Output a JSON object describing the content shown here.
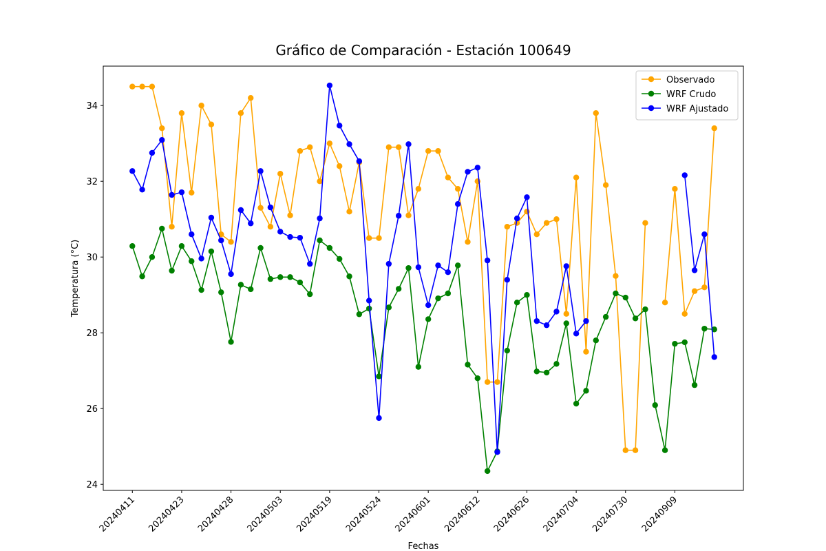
{
  "chart_data": {
    "type": "line",
    "title": "Gráfico de Comparación - Estación 100649",
    "x_label": "Fechas",
    "y_label": "Temperatura (°C)",
    "categories": [
      "20240411",
      null,
      null,
      null,
      null,
      "20240423",
      null,
      null,
      null,
      null,
      "20240428",
      null,
      null,
      null,
      null,
      "20240503",
      null,
      null,
      null,
      null,
      "20240519",
      null,
      null,
      null,
      null,
      "20240524",
      null,
      null,
      null,
      null,
      "20240601",
      null,
      null,
      null,
      null,
      "20240612",
      null,
      null,
      null,
      null,
      "20240626",
      null,
      null,
      null,
      null,
      "20240704",
      null,
      null,
      null,
      null,
      "20240730",
      null,
      null,
      null,
      null,
      "20240909",
      null,
      null,
      null,
      null
    ],
    "xlim": [
      -2.95,
      61.95
    ],
    "ylim": [
      23.84,
      35.04
    ],
    "yticks": [
      24,
      26,
      28,
      30,
      32,
      34
    ],
    "legend": "upper right",
    "series": [
      {
        "name": "Observado",
        "color": "orange",
        "values": [
          34.5,
          34.5,
          34.5,
          33.4,
          30.8,
          33.8,
          31.7,
          34.0,
          33.5,
          30.6,
          30.4,
          33.8,
          34.2,
          31.3,
          30.8,
          32.2,
          31.1,
          32.8,
          32.9,
          32.0,
          33.0,
          32.4,
          31.2,
          32.5,
          30.5,
          30.5,
          32.9,
          32.9,
          31.1,
          31.8,
          32.8,
          32.8,
          32.1,
          31.8,
          30.4,
          32.0,
          26.7,
          26.7,
          30.8,
          30.9,
          31.2,
          30.6,
          30.9,
          31.0,
          28.5,
          32.1,
          27.5,
          33.8,
          31.9,
          29.5,
          24.9,
          24.9,
          30.9,
          null,
          28.8,
          31.8,
          28.5,
          29.1,
          29.2,
          33.4
        ]
      },
      {
        "name": "WRF Crudo",
        "color": "green",
        "values": [
          30.29,
          29.49,
          30.0,
          30.75,
          29.64,
          30.29,
          29.89,
          29.13,
          30.15,
          29.07,
          27.76,
          29.27,
          29.15,
          30.24,
          29.42,
          29.47,
          29.47,
          29.33,
          29.02,
          30.44,
          30.24,
          29.95,
          29.49,
          28.49,
          28.64,
          26.85,
          28.67,
          29.16,
          29.71,
          27.1,
          28.36,
          28.91,
          29.04,
          29.78,
          27.16,
          26.8,
          24.35,
          24.87,
          27.53,
          28.8,
          29.0,
          26.98,
          26.95,
          27.18,
          28.25,
          26.13,
          26.47,
          27.8,
          28.42,
          29.04,
          28.93,
          28.38,
          28.62,
          26.09,
          24.9,
          27.71,
          27.75,
          26.62,
          28.11,
          28.09
        ]
      },
      {
        "name": "WRF Ajustado",
        "color": "blue",
        "values": [
          32.27,
          31.78,
          32.75,
          33.09,
          31.64,
          31.71,
          30.6,
          29.96,
          31.04,
          30.44,
          29.55,
          31.24,
          30.89,
          32.27,
          31.31,
          30.67,
          30.53,
          30.51,
          29.82,
          31.02,
          34.53,
          33.47,
          32.98,
          32.53,
          28.85,
          25.75,
          29.82,
          31.09,
          32.98,
          29.73,
          28.73,
          29.78,
          29.6,
          31.4,
          32.25,
          32.36,
          29.91,
          24.85,
          29.4,
          31.02,
          31.58,
          28.31,
          28.2,
          28.56,
          29.76,
          27.98,
          28.31,
          null,
          null,
          null,
          null,
          null,
          null,
          null,
          null,
          null,
          32.16,
          29.65,
          30.6,
          27.36
        ]
      }
    ]
  }
}
